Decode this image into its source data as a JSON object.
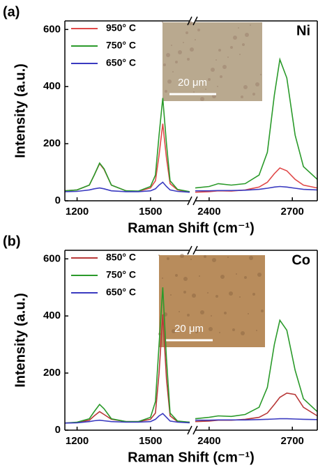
{
  "chart_data": [
    {
      "type": "line",
      "panel_label": "(a)",
      "annotation": "Ni",
      "inset_scale": "20 μm",
      "x_label": "Raman Shift (cm⁻¹)",
      "y_label": "Intensity (a.u.)",
      "xlim": [
        1150,
        2790
      ],
      "x_break": [
        1660,
        2350
      ],
      "xticks": [
        1200,
        1500,
        2400,
        2700
      ],
      "ylim": [
        0,
        630
      ],
      "yticks": [
        0,
        200,
        400,
        600
      ],
      "x": [
        1150,
        1200,
        1250,
        1270,
        1292,
        1310,
        1340,
        1400,
        1450,
        1500,
        1520,
        1535,
        1550,
        1565,
        1580,
        1610,
        1660,
        2350,
        2400,
        2433,
        2480,
        2530,
        2580,
        2610,
        2635,
        2655,
        2680,
        2710,
        2740,
        2790
      ],
      "series": [
        {
          "name": "950° C",
          "color": "#e04848",
          "values": [
            35,
            38,
            55,
            90,
            130,
            110,
            55,
            35,
            33,
            45,
            70,
            160,
            270,
            150,
            60,
            38,
            30,
            30,
            32,
            35,
            34,
            38,
            48,
            65,
            95,
            115,
            105,
            75,
            55,
            45
          ]
        },
        {
          "name": "750° C",
          "color": "#2a9a2a",
          "values": [
            35,
            38,
            55,
            90,
            132,
            112,
            55,
            35,
            34,
            50,
            90,
            230,
            360,
            200,
            70,
            40,
            32,
            45,
            50,
            60,
            55,
            60,
            90,
            170,
            370,
            495,
            430,
            230,
            120,
            75
          ]
        },
        {
          "name": "650° C",
          "color": "#3a3ac0",
          "values": [
            32,
            33,
            38,
            42,
            45,
            42,
            35,
            32,
            32,
            35,
            42,
            55,
            65,
            50,
            38,
            33,
            30,
            35,
            35,
            36,
            36,
            37,
            40,
            44,
            48,
            50,
            48,
            44,
            40,
            38
          ]
        }
      ]
    },
    {
      "type": "line",
      "panel_label": "(b)",
      "annotation": "Co",
      "inset_scale": "20 μm",
      "x_label": "Raman Shift (cm⁻¹)",
      "y_label": "Intensity (a.u.)",
      "xlim": [
        1150,
        2790
      ],
      "x_break": [
        1660,
        2350
      ],
      "xticks": [
        1200,
        1500,
        2400,
        2700
      ],
      "ylim": [
        0,
        630
      ],
      "yticks": [
        0,
        200,
        400,
        600
      ],
      "x": [
        1150,
        1200,
        1250,
        1270,
        1292,
        1310,
        1340,
        1400,
        1450,
        1500,
        1520,
        1535,
        1550,
        1565,
        1580,
        1610,
        1660,
        2350,
        2400,
        2433,
        2480,
        2530,
        2580,
        2610,
        2635,
        2655,
        2680,
        2710,
        2740,
        2790
      ],
      "series": [
        {
          "name": "850° C",
          "color": "#b83838",
          "values": [
            25,
            27,
            35,
            50,
            65,
            55,
            38,
            30,
            30,
            38,
            60,
            200,
            405,
            180,
            50,
            30,
            28,
            30,
            32,
            35,
            35,
            38,
            45,
            60,
            90,
            115,
            130,
            125,
            80,
            50
          ]
        },
        {
          "name": "750° C",
          "color": "#2a9a2a",
          "values": [
            25,
            28,
            40,
            65,
            90,
            75,
            40,
            30,
            30,
            45,
            100,
            300,
            500,
            250,
            60,
            32,
            28,
            40,
            45,
            50,
            48,
            55,
            80,
            150,
            300,
            385,
            350,
            210,
            110,
            65
          ]
        },
        {
          "name": "650° C",
          "color": "#3a3ac0",
          "values": [
            25,
            26,
            30,
            33,
            35,
            33,
            30,
            28,
            28,
            30,
            38,
            50,
            58,
            45,
            32,
            28,
            26,
            35,
            35,
            36,
            36,
            36,
            37,
            38,
            39,
            40,
            40,
            39,
            38,
            37
          ]
        }
      ]
    }
  ]
}
